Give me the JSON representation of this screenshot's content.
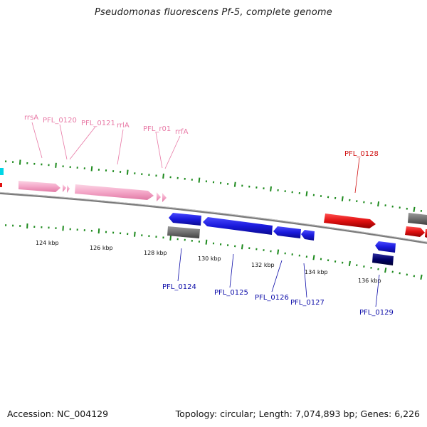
{
  "title": "Pseudomonas fluorescens Pf-5, complete genome",
  "footer": {
    "accession": "Accession: NC_004129",
    "topology": "Topology: circular; Length: 7,074,893 bp; Genes: 6,226"
  },
  "colors": {
    "backbone": "#888888",
    "rna": "#f4a7c8",
    "forward_cds": "#e01010",
    "reverse_cds": "#1a1adc",
    "dark_cds": "#000066",
    "pseudo": "#707070",
    "tick": "#1d8a1d",
    "edge_marker": "#00d6e6",
    "rna_label": "#e87aa6",
    "forward_label": "#d01010",
    "reverse_label": "#0a0aa8"
  },
  "ticks": [
    {
      "kbp": 124,
      "label": "124 kbp"
    },
    {
      "kbp": 126,
      "label": "126 kbp"
    },
    {
      "kbp": 128,
      "label": "128 kbp"
    },
    {
      "kbp": 130,
      "label": "130 kbp"
    },
    {
      "kbp": 132,
      "label": "132 kbp"
    },
    {
      "kbp": 134,
      "label": "134 kbp"
    },
    {
      "kbp": 136,
      "label": "136 kbp"
    }
  ],
  "labels": {
    "rna": [
      "rrsA",
      "PFL_0120",
      "PFL_0121",
      "rrlA",
      "PFL_r01",
      "rrfA"
    ],
    "forward": [
      "PFL_0128"
    ],
    "reverse": [
      "PFL_0124",
      "PFL_0125",
      "PFL_0126",
      "PFL_0127",
      "PFL_0129"
    ]
  }
}
